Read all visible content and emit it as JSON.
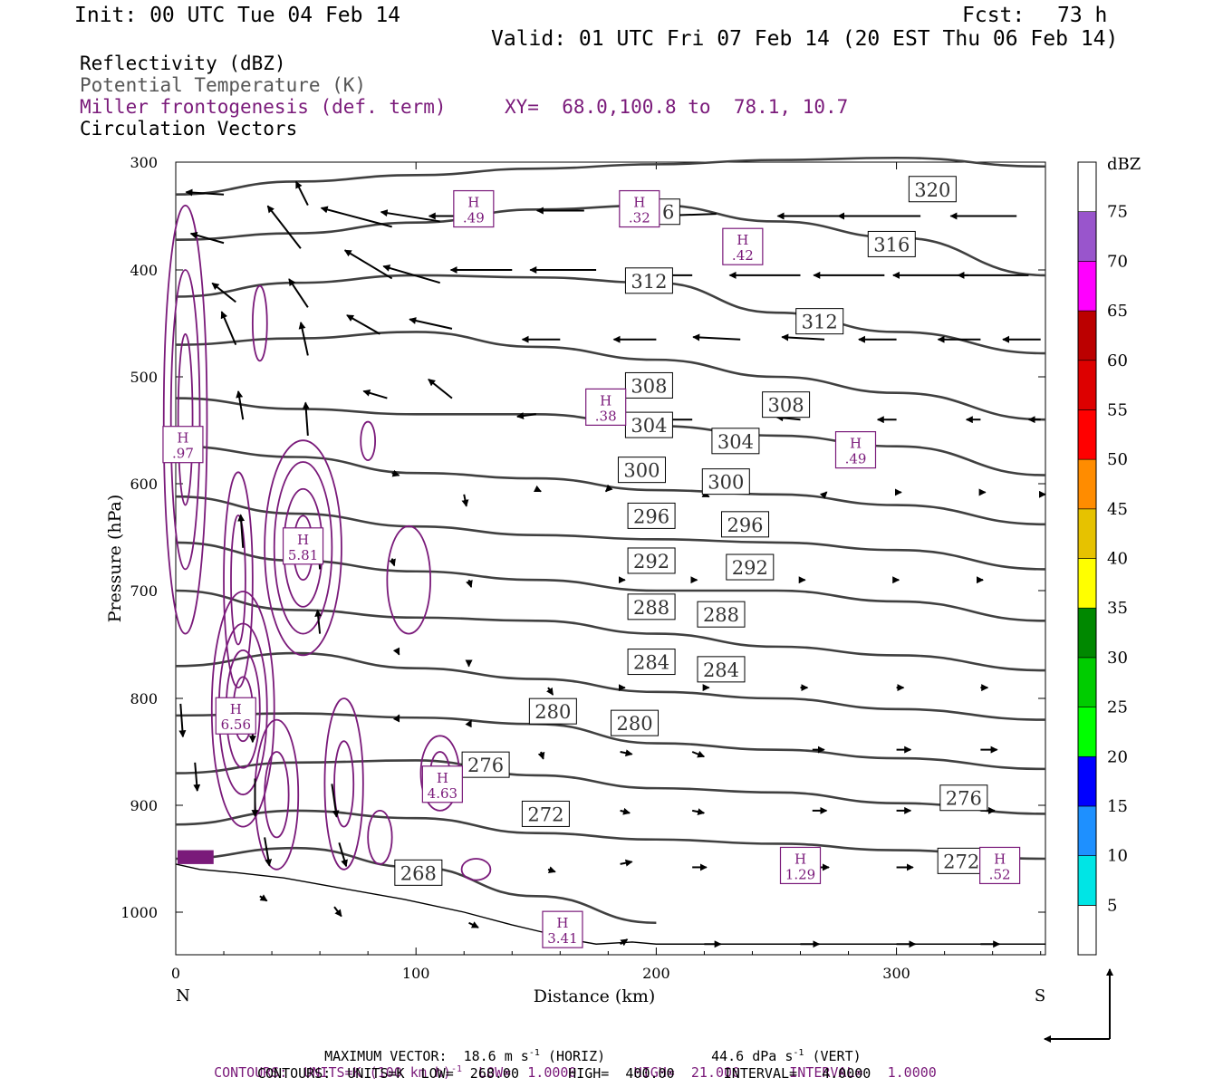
{
  "header": {
    "init": "Init: 00 UTC Tue 04 Feb 14",
    "fcst_label": "Fcst:",
    "fcst_value": "73 h",
    "valid": "Valid: 01 UTC Fri 07 Feb 14 (20 EST Thu 06 Feb 14)"
  },
  "fields": {
    "reflectivity": "Reflectivity (dBZ)",
    "theta": "Potential Temperature (K)",
    "frontogenesis": "Miller frontogenesis (def. term)",
    "xy": "XY=  68.0,100.8 to  78.1, 10.7",
    "vectors": "Circulation Vectors"
  },
  "colors": {
    "theta": "#404040",
    "frontogenesis": "#7a1a7a",
    "vectors": "#000000"
  },
  "footer": {
    "maxvec": "MAXIMUM VECTOR:  18.6 m s",
    "maxvec_sup": "-1",
    "maxvec_horiz": " (HORIZ)",
    "maxvec_vert": "44.6 dPa s",
    "maxvec_vert_sup": "-1",
    "maxvec_vert_tail": " (VERT)",
    "cont1_a": "CONTOURS:  UNITS=K (100 km h)",
    "cont1_sup": "-1",
    "cont1_b": "  LOW=  1.0000       HIGH=  21.000      INTERVAL=   1.0000",
    "cont2": "CONTOURS:  UNITS=K  LOW=  268.00      HIGH=  400.00      INTERVAL=   4.0000"
  },
  "chart_data": {
    "type": "cross-section",
    "xlabel": "Distance (km)",
    "ylabel": "Pressure (hPa)",
    "x_left_label": "N",
    "x_right_label": "S",
    "xlim": [
      0,
      362
    ],
    "ylim": [
      1040,
      300
    ],
    "xticks": [
      0,
      100,
      200,
      300
    ],
    "yticks": [
      300,
      400,
      500,
      600,
      700,
      800,
      900,
      1000
    ],
    "colorbar": {
      "unit": "dBZ",
      "levels": [
        5,
        10,
        15,
        20,
        25,
        30,
        35,
        40,
        45,
        50,
        55,
        60,
        65,
        70,
        75
      ],
      "colors": [
        "#00e5e5",
        "#1e90ff",
        "#0000ff",
        "#00ff00",
        "#00cc00",
        "#008800",
        "#ffff00",
        "#e6c200",
        "#ff8c00",
        "#ff0000",
        "#dd0000",
        "#bb0000",
        "#ff00ff",
        "#9955cc",
        "#ffffff"
      ]
    },
    "theta_isentropes": [
      {
        "label": "320",
        "x": [
          0,
          50,
          100,
          150,
          200,
          250,
          300,
          362
        ],
        "p": [
          330,
          318,
          312,
          306,
          302,
          298,
          296,
          304
        ]
      },
      {
        "label": "316",
        "x": [
          0,
          50,
          100,
          150,
          200,
          250,
          300,
          362
        ],
        "p": [
          372,
          366,
          356,
          344,
          340,
          355,
          370,
          405
        ]
      },
      {
        "label": "312",
        "x": [
          0,
          50,
          100,
          150,
          200,
          250,
          300,
          362
        ],
        "p": [
          425,
          412,
          405,
          407,
          412,
          440,
          458,
          478
        ]
      },
      {
        "label": "308",
        "x": [
          0,
          50,
          100,
          150,
          200,
          250,
          300,
          362
        ],
        "p": [
          470,
          464,
          458,
          472,
          484,
          500,
          515,
          540
        ]
      },
      {
        "label": "304",
        "x": [
          0,
          50,
          100,
          150,
          200,
          250,
          300,
          362
        ],
        "p": [
          520,
          530,
          535,
          535,
          546,
          555,
          565,
          592
        ]
      },
      {
        "label": "300",
        "x": [
          0,
          50,
          100,
          150,
          200,
          250,
          300,
          362
        ],
        "p": [
          565,
          575,
          590,
          595,
          606,
          610,
          620,
          638
        ]
      },
      {
        "label": "296",
        "x": [
          0,
          50,
          100,
          150,
          200,
          250,
          300,
          362
        ],
        "p": [
          612,
          628,
          640,
          648,
          652,
          655,
          662,
          680
        ]
      },
      {
        "label": "292",
        "x": [
          0,
          50,
          100,
          150,
          200,
          250,
          300,
          362
        ],
        "p": [
          655,
          672,
          682,
          690,
          700,
          700,
          710,
          728
        ]
      },
      {
        "label": "288",
        "x": [
          0,
          50,
          100,
          150,
          200,
          250,
          300,
          362
        ],
        "p": [
          700,
          718,
          725,
          728,
          740,
          752,
          760,
          774
        ]
      },
      {
        "label": "284",
        "x": [
          0,
          50,
          100,
          150,
          200,
          250,
          300,
          362
        ],
        "p": [
          770,
          758,
          772,
          782,
          794,
          800,
          810,
          820
        ]
      },
      {
        "label": "280",
        "x": [
          0,
          50,
          100,
          150,
          200,
          250,
          300,
          362
        ],
        "p": [
          816,
          814,
          818,
          824,
          842,
          848,
          856,
          866
        ]
      },
      {
        "label": "276",
        "x": [
          0,
          50,
          100,
          150,
          200,
          250,
          300,
          362
        ],
        "p": [
          870,
          860,
          858,
          872,
          884,
          888,
          898,
          908
        ]
      },
      {
        "label": "272",
        "x": [
          0,
          50,
          100,
          150,
          200,
          250,
          300,
          362
        ],
        "p": [
          918,
          905,
          912,
          926,
          932,
          936,
          942,
          950
        ]
      },
      {
        "label": "268",
        "x": [
          0,
          50,
          100,
          150,
          200
        ],
        "p": [
          950,
          940,
          958,
          985,
          1010
        ]
      }
    ],
    "frontogenesis_maxima": [
      {
        "label": "H",
        "value": ".49",
        "x": 124,
        "p": 345
      },
      {
        "label": "H",
        "value": ".32",
        "x": 193,
        "p": 345
      },
      {
        "label": "H",
        "value": ".42",
        "x": 236,
        "p": 380
      },
      {
        "label": "H",
        "value": ".38",
        "x": 179,
        "p": 530
      },
      {
        "label": "H",
        "value": ".97",
        "x": 3,
        "p": 565
      },
      {
        "label": "H",
        "value": ".49",
        "x": 283,
        "p": 570
      },
      {
        "label": "H",
        "value": "5.81",
        "x": 53,
        "p": 660
      },
      {
        "label": "H",
        "value": "6.56",
        "x": 25,
        "p": 818
      },
      {
        "label": "H",
        "value": "4.63",
        "x": 111,
        "p": 882
      },
      {
        "label": "H",
        "value": "1.29",
        "x": 260,
        "p": 958
      },
      {
        "label": "H",
        "value": ".52",
        "x": 343,
        "p": 958
      },
      {
        "label": "H",
        "value": "3.41",
        "x": 161,
        "p": 1018
      }
    ],
    "theta_label_positions": [
      {
        "label": "320",
        "x": 315,
        "p": 325
      },
      {
        "label": "316",
        "x": 200,
        "p": 346
      },
      {
        "label": "316",
        "x": 298,
        "p": 376
      },
      {
        "label": "312",
        "x": 197,
        "p": 410
      },
      {
        "label": "312",
        "x": 268,
        "p": 448
      },
      {
        "label": "308",
        "x": 197,
        "p": 508
      },
      {
        "label": "308",
        "x": 254,
        "p": 526
      },
      {
        "label": "304",
        "x": 197,
        "p": 545
      },
      {
        "label": "304",
        "x": 233,
        "p": 560
      },
      {
        "label": "300",
        "x": 194,
        "p": 587
      },
      {
        "label": "300",
        "x": 229,
        "p": 598
      },
      {
        "label": "296",
        "x": 198,
        "p": 630
      },
      {
        "label": "296",
        "x": 237,
        "p": 638
      },
      {
        "label": "292",
        "x": 198,
        "p": 672
      },
      {
        "label": "292",
        "x": 239,
        "p": 678
      },
      {
        "label": "288",
        "x": 198,
        "p": 715
      },
      {
        "label": "288",
        "x": 227,
        "p": 722
      },
      {
        "label": "284",
        "x": 198,
        "p": 766
      },
      {
        "label": "284",
        "x": 227,
        "p": 773
      },
      {
        "label": "280",
        "x": 157,
        "p": 812
      },
      {
        "label": "280",
        "x": 191,
        "p": 823
      },
      {
        "label": "276",
        "x": 129,
        "p": 862
      },
      {
        "label": "276",
        "x": 328,
        "p": 893
      },
      {
        "label": "272",
        "x": 154,
        "p": 908
      },
      {
        "label": "272",
        "x": 327,
        "p": 952
      },
      {
        "label": "268",
        "x": 101,
        "p": 963
      }
    ],
    "circulation_vectors": [
      {
        "x": 20,
        "p": 330,
        "u": -16,
        "w": 1
      },
      {
        "x": 55,
        "p": 340,
        "u": -5,
        "w": 10
      },
      {
        "x": 130,
        "p": 350,
        "u": -25,
        "w": 0
      },
      {
        "x": 170,
        "p": 345,
        "u": -20,
        "w": 0
      },
      {
        "x": 225,
        "p": 348,
        "u": -30,
        "w": -1
      },
      {
        "x": 280,
        "p": 350,
        "u": -30,
        "w": 0
      },
      {
        "x": 310,
        "p": 350,
        "u": -35,
        "w": 0
      },
      {
        "x": 350,
        "p": 350,
        "u": -28,
        "w": 0
      },
      {
        "x": 90,
        "p": 360,
        "u": -30,
        "w": 8
      },
      {
        "x": 110,
        "p": 355,
        "u": -25,
        "w": 4
      },
      {
        "x": 20,
        "p": 375,
        "u": -14,
        "w": 4
      },
      {
        "x": 52,
        "p": 380,
        "u": -14,
        "w": 18
      },
      {
        "x": 90,
        "p": 408,
        "u": -20,
        "w": 12
      },
      {
        "x": 110,
        "p": 412,
        "u": -24,
        "w": 7
      },
      {
        "x": 140,
        "p": 400,
        "u": -26,
        "w": 0
      },
      {
        "x": 175,
        "p": 400,
        "u": -28,
        "w": 0
      },
      {
        "x": 215,
        "p": 405,
        "u": -28,
        "w": 0
      },
      {
        "x": 260,
        "p": 405,
        "u": -30,
        "w": 0
      },
      {
        "x": 295,
        "p": 405,
        "u": -30,
        "w": 0
      },
      {
        "x": 330,
        "p": 405,
        "u": -32,
        "w": 0
      },
      {
        "x": 355,
        "p": 405,
        "u": -30,
        "w": 0
      },
      {
        "x": 25,
        "p": 430,
        "u": -10,
        "w": 8
      },
      {
        "x": 55,
        "p": 435,
        "u": -8,
        "w": 12
      },
      {
        "x": 85,
        "p": 460,
        "u": -14,
        "w": 8
      },
      {
        "x": 115,
        "p": 455,
        "u": -18,
        "w": 4
      },
      {
        "x": 160,
        "p": 465,
        "u": -16,
        "w": 0
      },
      {
        "x": 200,
        "p": 465,
        "u": -18,
        "w": 0
      },
      {
        "x": 235,
        "p": 465,
        "u": -20,
        "w": 1
      },
      {
        "x": 270,
        "p": 465,
        "u": -18,
        "w": 1
      },
      {
        "x": 300,
        "p": 465,
        "u": -16,
        "w": 0
      },
      {
        "x": 335,
        "p": 465,
        "u": -18,
        "w": 0
      },
      {
        "x": 360,
        "p": 465,
        "u": -16,
        "w": 0
      },
      {
        "x": 25,
        "p": 470,
        "u": -6,
        "w": 14
      },
      {
        "x": 55,
        "p": 480,
        "u": -3,
        "w": 14
      },
      {
        "x": 88,
        "p": 520,
        "u": -10,
        "w": 3
      },
      {
        "x": 115,
        "p": 520,
        "u": -10,
        "w": 8
      },
      {
        "x": 150,
        "p": 535,
        "u": -8,
        "w": -1
      },
      {
        "x": 185,
        "p": 538,
        "u": -10,
        "w": 0
      },
      {
        "x": 215,
        "p": 540,
        "u": -12,
        "w": 0
      },
      {
        "x": 260,
        "p": 540,
        "u": -10,
        "w": 1
      },
      {
        "x": 300,
        "p": 540,
        "u": -8,
        "w": 0
      },
      {
        "x": 335,
        "p": 540,
        "u": -6,
        "w": 0
      },
      {
        "x": 360,
        "p": 540,
        "u": -5,
        "w": 0
      },
      {
        "x": 28,
        "p": 540,
        "u": -2,
        "w": 12
      },
      {
        "x": 55,
        "p": 555,
        "u": -1,
        "w": 14
      },
      {
        "x": 90,
        "p": 590,
        "u": 3,
        "w": -1
      },
      {
        "x": 120,
        "p": 610,
        "u": 1,
        "w": -5
      },
      {
        "x": 150,
        "p": 605,
        "u": 2,
        "w": -1
      },
      {
        "x": 180,
        "p": 605,
        "u": -1,
        "w": -1
      },
      {
        "x": 220,
        "p": 610,
        "u": 2,
        "w": -1
      },
      {
        "x": 270,
        "p": 610,
        "u": 1,
        "w": 1
      },
      {
        "x": 300,
        "p": 608,
        "u": 2,
        "w": 0
      },
      {
        "x": 335,
        "p": 608,
        "u": 2,
        "w": 0
      },
      {
        "x": 360,
        "p": 610,
        "u": 2,
        "w": 0
      },
      {
        "x": 28,
        "p": 660,
        "u": -1,
        "w": 14
      },
      {
        "x": 60,
        "p": 680,
        "u": -1,
        "w": 14
      },
      {
        "x": 90,
        "p": 670,
        "u": 1,
        "w": -3
      },
      {
        "x": 122,
        "p": 690,
        "u": 1,
        "w": -3
      },
      {
        "x": 185,
        "p": 690,
        "u": 2,
        "w": 0
      },
      {
        "x": 215,
        "p": 690,
        "u": 2,
        "w": 0
      },
      {
        "x": 260,
        "p": 690,
        "u": 2,
        "w": 0
      },
      {
        "x": 300,
        "p": 690,
        "u": 1,
        "w": 0
      },
      {
        "x": 335,
        "p": 690,
        "u": 1,
        "w": 0
      },
      {
        "x": 60,
        "p": 740,
        "u": -1,
        "w": 10
      },
      {
        "x": 92,
        "p": 755,
        "u": 1,
        "w": -2
      },
      {
        "x": 122,
        "p": 768,
        "u": 0,
        "w": -1
      },
      {
        "x": 155,
        "p": 790,
        "u": 2,
        "w": -3
      },
      {
        "x": 185,
        "p": 790,
        "u": 2,
        "w": 0
      },
      {
        "x": 220,
        "p": 790,
        "u": 2,
        "w": 0
      },
      {
        "x": 260,
        "p": 790,
        "u": 3,
        "w": 0
      },
      {
        "x": 300,
        "p": 790,
        "u": 3,
        "w": 0
      },
      {
        "x": 335,
        "p": 790,
        "u": 3,
        "w": 0
      },
      {
        "x": 2,
        "p": 805,
        "u": 1,
        "w": -14
      },
      {
        "x": 32,
        "p": 810,
        "u": 0,
        "w": -14
      },
      {
        "x": 92,
        "p": 820,
        "u": 1,
        "w": 2
      },
      {
        "x": 122,
        "p": 825,
        "u": 1,
        "w": 2
      },
      {
        "x": 152,
        "p": 850,
        "u": 1,
        "w": -3
      },
      {
        "x": 185,
        "p": 850,
        "u": 5,
        "w": -1
      },
      {
        "x": 215,
        "p": 850,
        "u": 5,
        "w": -2
      },
      {
        "x": 265,
        "p": 848,
        "u": 5,
        "w": 0
      },
      {
        "x": 300,
        "p": 848,
        "u": 6,
        "w": 0
      },
      {
        "x": 335,
        "p": 848,
        "u": 7,
        "w": 0
      },
      {
        "x": 8,
        "p": 860,
        "u": 1,
        "w": -12
      },
      {
        "x": 33,
        "p": 875,
        "u": 0,
        "w": -16
      },
      {
        "x": 65,
        "p": 880,
        "u": 2,
        "w": -14
      },
      {
        "x": 185,
        "p": 905,
        "u": 4,
        "w": -1
      },
      {
        "x": 215,
        "p": 905,
        "u": 5,
        "w": -1
      },
      {
        "x": 265,
        "p": 905,
        "u": 6,
        "w": 0
      },
      {
        "x": 300,
        "p": 905,
        "u": 6,
        "w": 0
      },
      {
        "x": 335,
        "p": 905,
        "u": 6,
        "w": 0
      },
      {
        "x": 37,
        "p": 930,
        "u": 2,
        "w": -12
      },
      {
        "x": 68,
        "p": 935,
        "u": 3,
        "w": -10
      },
      {
        "x": 155,
        "p": 960,
        "u": 3,
        "w": -1
      },
      {
        "x": 185,
        "p": 955,
        "u": 5,
        "w": 1
      },
      {
        "x": 215,
        "p": 958,
        "u": 6,
        "w": 0
      },
      {
        "x": 265,
        "p": 958,
        "u": 7,
        "w": 0
      },
      {
        "x": 300,
        "p": 958,
        "u": 7,
        "w": 0
      },
      {
        "x": 335,
        "p": 960,
        "u": 7,
        "w": -1
      },
      {
        "x": 35,
        "p": 985,
        "u": 3,
        "w": -2
      },
      {
        "x": 66,
        "p": 995,
        "u": 3,
        "w": -4
      },
      {
        "x": 122,
        "p": 1010,
        "u": 4,
        "w": -2
      },
      {
        "x": 185,
        "p": 1030,
        "u": 3,
        "w": 2
      },
      {
        "x": 220,
        "p": 1030,
        "u": 7,
        "w": 0
      },
      {
        "x": 260,
        "p": 1030,
        "u": 8,
        "w": 0
      },
      {
        "x": 300,
        "p": 1030,
        "u": 8,
        "w": 0
      },
      {
        "x": 335,
        "p": 1030,
        "u": 8,
        "w": 0
      }
    ],
    "reference_vector": "MAXIMUM VECTOR"
  }
}
